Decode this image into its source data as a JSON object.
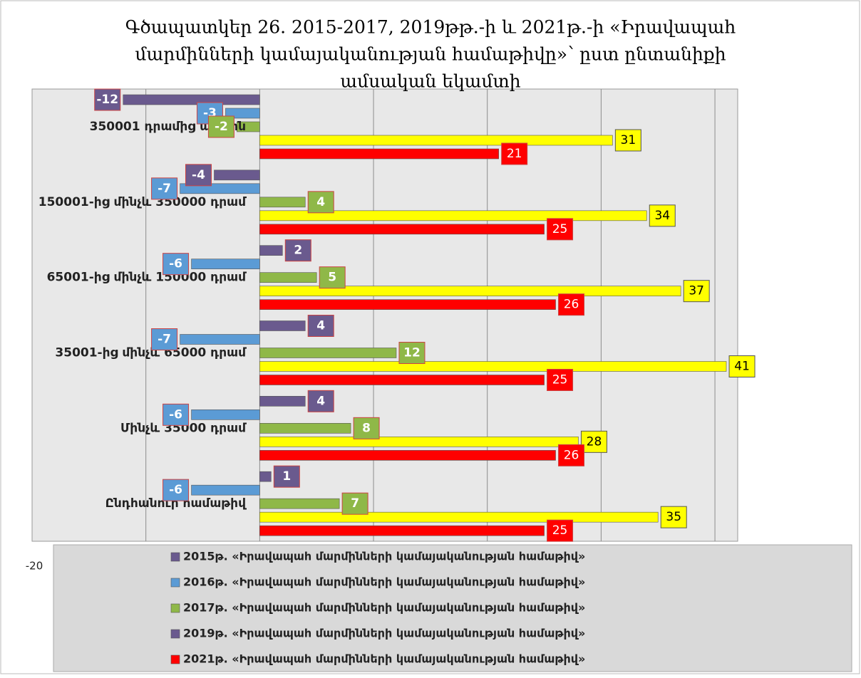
{
  "chart_data": {
    "type": "hbar",
    "title": [
      "Գծապատկեր 26. 2015-2017, 2019թթ.-ի և 2021թ.-ի «Իրավապահ",
      "մարմինների կամայականության համաթիվը»՝ ըստ ընտանիքի",
      "ամսական եկամտի"
    ],
    "categories": [
      "350001 դրամից ավելին",
      "150001-ից մինչև 350000 դրամ",
      "65001-ից մինչև 150000 դրամ",
      "35001-ից մինչև 65000 դրամ",
      "Մինչև 35000 դրամ",
      "Ընդհանուր համաթիվ"
    ],
    "series": [
      {
        "name": "2015թ. «Իրավապահ մարմինների կամայականության համաթիվ»",
        "color": "#6a5a8e",
        "legend_color": "#6a5a8e",
        "values": [
          -12,
          -4,
          2,
          4,
          4,
          1
        ]
      },
      {
        "name": "2016թ. «Իրավապահ մարմինների կամայականության համաթիվ»",
        "color": "#5b9bd5",
        "legend_color": "#5b9bd5",
        "values": [
          -3,
          -7,
          -6,
          -7,
          -6,
          -6
        ]
      },
      {
        "name": "2017թ. «Իրավապահ մարմինների կամայականության համաթիվ»",
        "color": "#8fb848",
        "legend_color": "#8fb848",
        "values": [
          -2,
          4,
          5,
          12,
          8,
          7
        ]
      },
      {
        "name": "2019թ. «Իրավապահ մարմինների կամայականության համաթիվ»",
        "color": "#ffff00",
        "legend_color": "#6a5a8e",
        "values": [
          31,
          34,
          37,
          41,
          28,
          35
        ]
      },
      {
        "name": "2021թ. «Իրավապահ մարմինների կամայականության համաթիվ»",
        "color": "#ff0000",
        "legend_color": "#ff0000",
        "values": [
          21,
          25,
          26,
          25,
          26,
          25
        ]
      }
    ],
    "xlim": [
      -20,
      42
    ],
    "xticks": [
      -20
    ],
    "grid_x": [
      -10,
      0,
      10,
      20,
      30,
      40
    ]
  }
}
